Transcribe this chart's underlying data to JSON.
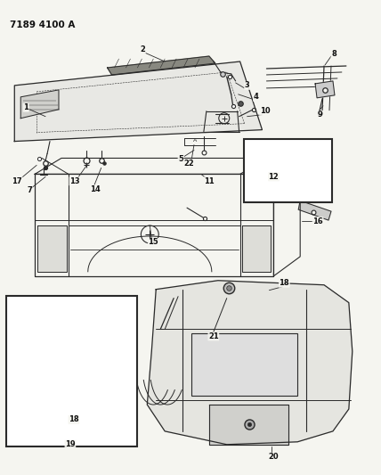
{
  "title": "7189 4100 A",
  "bg_color": "#f5f5f0",
  "lc": "#2a2a2a",
  "figsize": [
    4.28,
    5.33
  ],
  "dpi": 100,
  "lfs": 6.0,
  "tfs": 7.5
}
